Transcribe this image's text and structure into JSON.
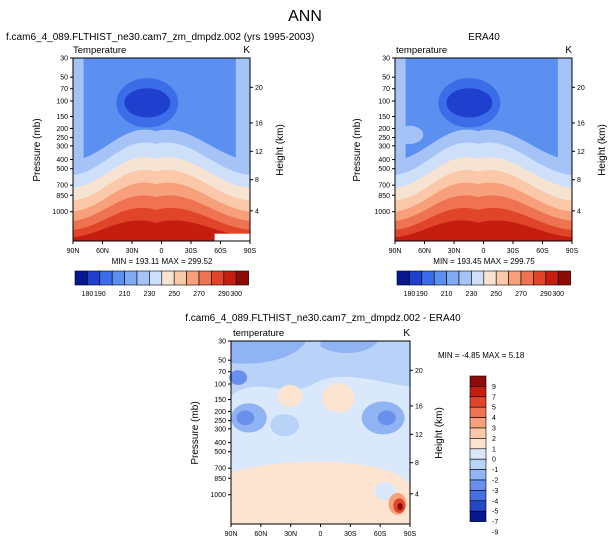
{
  "page_title": "ANN",
  "chart_data": [
    {
      "type": "heatmap",
      "title": "f.cam6_4_089.FLTHIST_ne30.cam7_zm_dmpdz.002 (yrs 1995-2003)",
      "left_label": "Temperature",
      "unit_label": "K",
      "ylabel": "Pressure (mb)",
      "y2label": "Height (km)",
      "x_ticks": [
        "90N",
        "60N",
        "30N",
        "0",
        "30S",
        "60S",
        "90S"
      ],
      "y_ticks": [
        "30",
        "50",
        "70",
        "100",
        "150",
        "200",
        "250",
        "300",
        "400",
        "500",
        "700",
        "850",
        "1000"
      ],
      "y2_ticks": [
        "20",
        "16",
        "12",
        "8",
        "4"
      ],
      "stats": "MIN = 193.11   MAX = 299.52",
      "min": 193.11,
      "max": 299.52,
      "colorbar": [
        "180",
        "190",
        "200",
        "210",
        "220",
        "230",
        "240",
        "250",
        "260",
        "270",
        "280",
        "290",
        "300"
      ],
      "colorbar_labels": [
        "180",
        "190",
        "210",
        "230",
        "250",
        "270",
        "290",
        "300"
      ]
    },
    {
      "type": "heatmap",
      "title": "ERA40",
      "left_label": "temperature",
      "unit_label": "K",
      "ylabel": "Pressure (mb)",
      "y2label": "Height (km)",
      "x_ticks": [
        "90N",
        "60N",
        "30N",
        "0",
        "30S",
        "60S",
        "90S"
      ],
      "y_ticks": [
        "30",
        "50",
        "70",
        "100",
        "150",
        "200",
        "250",
        "300",
        "400",
        "500",
        "700",
        "850",
        "1000"
      ],
      "y2_ticks": [
        "20",
        "16",
        "12",
        "8",
        "4"
      ],
      "stats": "MIN = 193.45   MAX = 299.75",
      "min": 193.45,
      "max": 299.75,
      "colorbar": [
        "180",
        "190",
        "200",
        "210",
        "220",
        "230",
        "240",
        "250",
        "260",
        "270",
        "280",
        "290",
        "300"
      ],
      "colorbar_labels": [
        "180",
        "190",
        "210",
        "230",
        "250",
        "270",
        "290",
        "300"
      ]
    },
    {
      "type": "heatmap",
      "title": "f.cam6_4_089.FLTHIST_ne30.cam7_zm_dmpdz.002 - ERA40",
      "left_label": "temperature",
      "unit_label": "K",
      "ylabel": "Pressure (mb)",
      "y2label": "Height (km)",
      "x_ticks": [
        "90N",
        "60N",
        "30N",
        "0",
        "30S",
        "60S",
        "90S"
      ],
      "y_ticks": [
        "30",
        "50",
        "70",
        "100",
        "150",
        "200",
        "250",
        "300",
        "400",
        "500",
        "700",
        "850",
        "1000"
      ],
      "y2_ticks": [
        "20",
        "16",
        "12",
        "8",
        "4"
      ],
      "stats": "MIN = -4.85   MAX =  5.18",
      "min": -4.85,
      "max": 5.18,
      "colorbar_levels": [
        "9",
        "7",
        "5",
        "4",
        "3",
        "2",
        "1",
        "0",
        "-1",
        "-2",
        "-3",
        "-4",
        "-5",
        "-7",
        "-9"
      ]
    }
  ],
  "colors": {
    "abs": [
      "#06178f",
      "#1f3fce",
      "#3b6de8",
      "#5b8ff0",
      "#81aaf5",
      "#a6c3f8",
      "#cddff9",
      "#f7e3d2",
      "#fbc8aa",
      "#f8a07b",
      "#ef7352",
      "#e14529",
      "#c51e10",
      "#8f0b08"
    ],
    "diff": [
      "#8f0b08",
      "#c51e10",
      "#e14529",
      "#ef7352",
      "#f8a07b",
      "#fbc8aa",
      "#fde4d0",
      "#d9e8fb",
      "#b9d2f8",
      "#8fb3f3",
      "#6890ec",
      "#4570e0",
      "#2448c6",
      "#06178f"
    ]
  }
}
